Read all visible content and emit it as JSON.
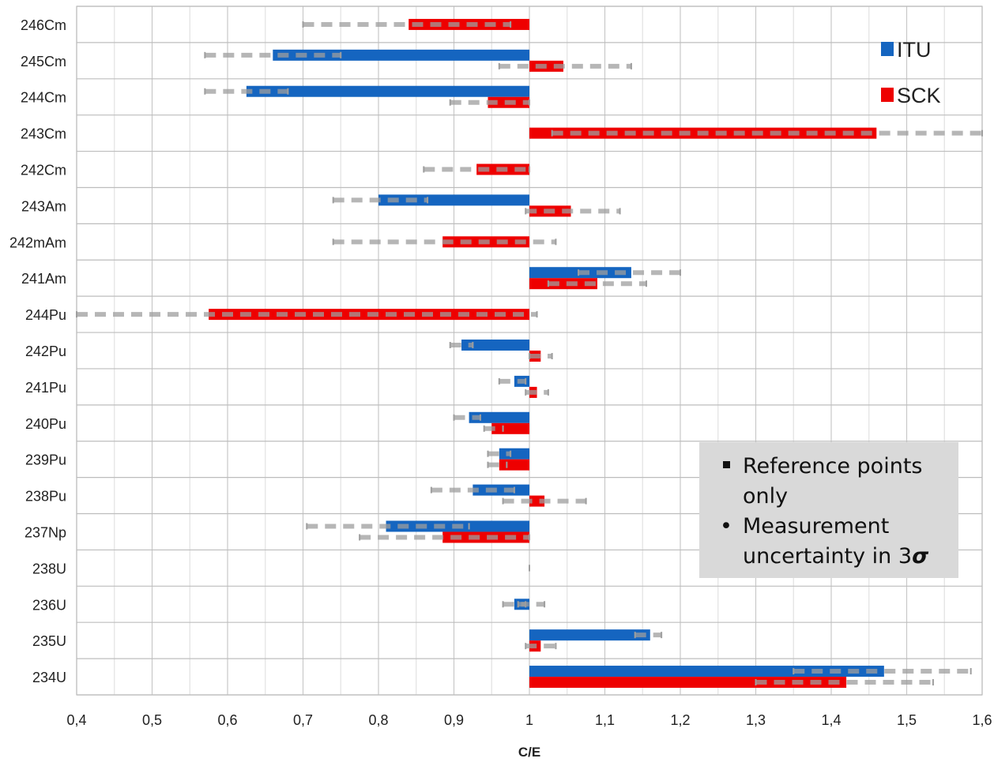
{
  "chart_data": {
    "type": "bar",
    "orientation": "horizontal",
    "xlabel": "C/E",
    "xlim": [
      0.4,
      1.6
    ],
    "x_ticks": [
      "0,4",
      "0,5",
      "0,6",
      "0,7",
      "0,8",
      "0,9",
      "1",
      "1,1",
      "1,2",
      "1,3",
      "1,4",
      "1,5",
      "1,6"
    ],
    "categories": [
      "246Cm",
      "245Cm",
      "244Cm",
      "243Cm",
      "242Cm",
      "243Am",
      "242mAm",
      "241Am",
      "244Pu",
      "242Pu",
      "241Pu",
      "240Pu",
      "239Pu",
      "238Pu",
      "237Np",
      "238U",
      "236U",
      "235U",
      "234U"
    ],
    "series": [
      {
        "name": "ITU",
        "color": "#1565c0",
        "values": [
          null,
          0.66,
          0.625,
          null,
          null,
          0.8,
          null,
          1.135,
          null,
          0.91,
          0.98,
          0.92,
          0.96,
          0.925,
          0.81,
          null,
          0.98,
          1.16,
          1.47
        ],
        "error_low": [
          null,
          0.57,
          0.57,
          null,
          null,
          0.74,
          null,
          1.065,
          null,
          0.895,
          0.96,
          0.9,
          0.945,
          0.87,
          0.705,
          null,
          0.965,
          1.14,
          1.35
        ],
        "error_high": [
          null,
          0.75,
          0.68,
          null,
          null,
          0.865,
          null,
          1.2,
          null,
          0.925,
          0.995,
          0.935,
          0.975,
          0.98,
          0.92,
          null,
          0.995,
          1.175,
          1.585
        ]
      },
      {
        "name": "SCK",
        "color": "#ee0000",
        "values": [
          0.84,
          1.045,
          0.945,
          1.46,
          0.93,
          1.055,
          0.885,
          1.09,
          0.575,
          1.015,
          1.01,
          0.95,
          0.96,
          1.02,
          0.885,
          null,
          null,
          1.015,
          1.42
        ],
        "error_low": [
          0.7,
          0.96,
          0.895,
          1.03,
          0.86,
          0.995,
          0.74,
          1.025,
          0.4,
          1.0,
          0.995,
          0.94,
          0.945,
          0.965,
          0.775,
          1.0,
          0.985,
          0.995,
          1.3
        ],
        "error_high": [
          0.975,
          1.135,
          1.0,
          1.6,
          1.0,
          1.12,
          1.035,
          1.155,
          1.01,
          1.03,
          1.025,
          0.965,
          0.97,
          1.075,
          1.0,
          1.0,
          1.02,
          1.035,
          1.535
        ]
      }
    ],
    "legend": {
      "position": "top-right",
      "entries": [
        "ITU",
        "SCK"
      ]
    },
    "grid": true
  },
  "note": {
    "item1": "Reference points only",
    "item2_text": "Measurement uncertainty in 3",
    "item2_symbol": "σ"
  }
}
